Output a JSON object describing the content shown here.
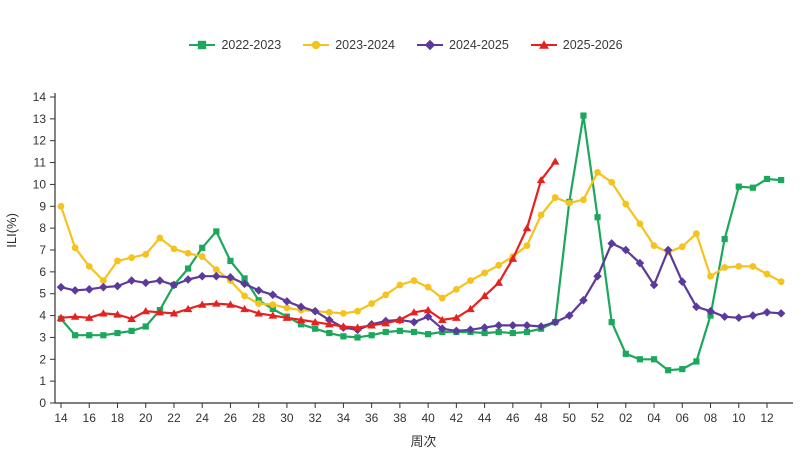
{
  "axes": {
    "y_label": "ILI(%)",
    "x_label": "周次",
    "y_min": 0,
    "y_max": 14,
    "y_tick_step": 1,
    "x_tick_labels": [
      "14",
      "16",
      "18",
      "20",
      "22",
      "24",
      "26",
      "28",
      "30",
      "32",
      "34",
      "36",
      "38",
      "40",
      "42",
      "44",
      "46",
      "48",
      "50",
      "52",
      "02",
      "04",
      "06",
      "08",
      "10",
      "12"
    ]
  },
  "legend": [
    {
      "label": "2022-2023",
      "color": "#1CA85C",
      "marker": "square"
    },
    {
      "label": "2023-2024",
      "color": "#F5C31D",
      "marker": "circle"
    },
    {
      "label": "2024-2025",
      "color": "#5C3A9C",
      "marker": "diamond"
    },
    {
      "label": "2025-2026",
      "color": "#E42320",
      "marker": "triangle"
    }
  ],
  "chart_data": {
    "type": "line",
    "title": "",
    "xlabel": "周次",
    "ylabel": "ILI(%)",
    "ylim": [
      0,
      14
    ],
    "grid": false,
    "legend_position": "top-center",
    "categories": [
      "14",
      "15",
      "16",
      "17",
      "18",
      "19",
      "20",
      "21",
      "22",
      "23",
      "24",
      "25",
      "26",
      "27",
      "28",
      "29",
      "30",
      "31",
      "32",
      "33",
      "34",
      "35",
      "36",
      "37",
      "38",
      "39",
      "40",
      "41",
      "42",
      "43",
      "44",
      "45",
      "46",
      "47",
      "48",
      "49",
      "50",
      "51",
      "52",
      "01",
      "02",
      "03",
      "04",
      "05",
      "06",
      "07",
      "08",
      "09",
      "10",
      "11",
      "12",
      "13"
    ],
    "series": [
      {
        "name": "2022-2023",
        "color": "#1CA85C",
        "marker": "square",
        "values": [
          3.85,
          3.1,
          3.1,
          3.1,
          3.2,
          3.3,
          3.5,
          4.25,
          5.4,
          6.15,
          7.1,
          7.85,
          6.5,
          5.7,
          4.7,
          4.3,
          3.95,
          3.6,
          3.4,
          3.2,
          3.05,
          3.0,
          3.1,
          3.25,
          3.3,
          3.25,
          3.15,
          3.25,
          3.25,
          3.25,
          3.2,
          3.25,
          3.2,
          3.25,
          3.4,
          3.7,
          9.2,
          13.15,
          8.5,
          3.7,
          2.25,
          2.0,
          2.0,
          1.5,
          1.55,
          1.9,
          4.0,
          7.5,
          9.9,
          9.85,
          10.25,
          10.2
        ]
      },
      {
        "name": "2023-2024",
        "color": "#F5C31D",
        "marker": "circle",
        "values": [
          9.0,
          7.1,
          6.25,
          5.6,
          6.5,
          6.65,
          6.8,
          7.55,
          7.05,
          6.85,
          6.7,
          6.1,
          5.6,
          4.9,
          4.55,
          4.5,
          4.35,
          4.25,
          4.2,
          4.15,
          4.1,
          4.2,
          4.55,
          4.95,
          5.4,
          5.6,
          5.3,
          4.8,
          5.2,
          5.6,
          5.95,
          6.3,
          6.7,
          7.2,
          8.6,
          9.4,
          9.15,
          9.3,
          10.55,
          10.1,
          9.1,
          8.2,
          7.2,
          6.9,
          7.15,
          7.75,
          5.8,
          6.2,
          6.25,
          6.25,
          5.9,
          5.55
        ]
      },
      {
        "name": "2024-2025",
        "color": "#5C3A9C",
        "marker": "diamond",
        "values": [
          5.3,
          5.15,
          5.2,
          5.3,
          5.35,
          5.6,
          5.5,
          5.6,
          5.4,
          5.65,
          5.8,
          5.8,
          5.75,
          5.45,
          5.15,
          4.95,
          4.65,
          4.4,
          4.2,
          3.8,
          3.45,
          3.35,
          3.6,
          3.75,
          3.8,
          3.7,
          3.95,
          3.4,
          3.3,
          3.35,
          3.45,
          3.55,
          3.55,
          3.55,
          3.5,
          3.7,
          4.0,
          4.7,
          5.8,
          7.3,
          7.0,
          6.4,
          5.4,
          7.0,
          5.55,
          4.4,
          4.2,
          3.95,
          3.9,
          4.0,
          4.15,
          4.1
        ]
      },
      {
        "name": "2025-2026",
        "color": "#E42320",
        "marker": "triangle",
        "values": [
          3.9,
          3.95,
          3.9,
          4.1,
          4.05,
          3.85,
          4.2,
          4.15,
          4.1,
          4.3,
          4.5,
          4.55,
          4.5,
          4.3,
          4.1,
          4.0,
          3.9,
          3.8,
          3.7,
          3.6,
          3.5,
          3.45,
          3.55,
          3.65,
          3.8,
          4.15,
          4.25,
          3.8,
          3.9,
          4.3,
          4.9,
          5.5,
          6.6,
          8.0,
          10.2,
          11.05,
          null,
          null,
          null,
          null,
          null,
          null,
          null,
          null,
          null,
          null,
          null,
          null,
          null,
          null,
          null,
          null
        ]
      }
    ]
  }
}
